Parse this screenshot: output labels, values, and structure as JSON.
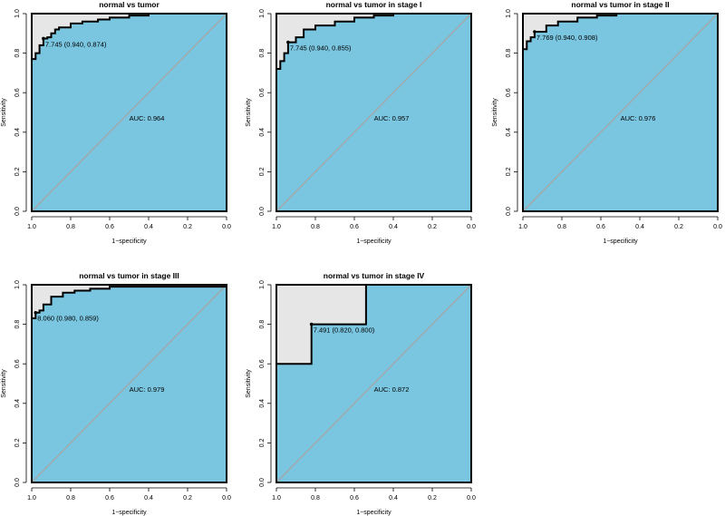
{
  "colors": {
    "auc_fill": "#7AC5E0",
    "outer_fill": "#E6E6E6",
    "diagonal": "#A6A6A6",
    "curve": "#000000",
    "frame": "#000000"
  },
  "chart_data": [
    {
      "type": "line",
      "title": "normal vs tumor",
      "xlabel": "1−specificity",
      "ylabel": "Sensitivity",
      "x_reversed": true,
      "xlim": [
        1.0,
        0.0
      ],
      "ylim": [
        0.0,
        1.0
      ],
      "x_ticks": [
        "1.0",
        "0.8",
        "0.6",
        "0.4",
        "0.2",
        "0.0"
      ],
      "y_ticks": [
        "0.0",
        "0.2",
        "0.4",
        "0.6",
        "0.8",
        "1.0"
      ],
      "auc_label": "AUC: 0.964",
      "threshold_label": "7.745 (0.940, 0.874)",
      "threshold_point": {
        "x": 0.94,
        "y": 0.874
      },
      "curve": [
        [
          1.0,
          0.0
        ],
        [
          1.0,
          0.77
        ],
        [
          0.98,
          0.77
        ],
        [
          0.98,
          0.8
        ],
        [
          0.96,
          0.8
        ],
        [
          0.96,
          0.84
        ],
        [
          0.94,
          0.84
        ],
        [
          0.94,
          0.874
        ],
        [
          0.92,
          0.874
        ],
        [
          0.92,
          0.88
        ],
        [
          0.9,
          0.88
        ],
        [
          0.9,
          0.9
        ],
        [
          0.88,
          0.9
        ],
        [
          0.88,
          0.92
        ],
        [
          0.86,
          0.92
        ],
        [
          0.86,
          0.93
        ],
        [
          0.8,
          0.93
        ],
        [
          0.8,
          0.95
        ],
        [
          0.74,
          0.95
        ],
        [
          0.74,
          0.96
        ],
        [
          0.66,
          0.96
        ],
        [
          0.66,
          0.97
        ],
        [
          0.6,
          0.97
        ],
        [
          0.6,
          0.98
        ],
        [
          0.5,
          0.98
        ],
        [
          0.5,
          0.99
        ],
        [
          0.4,
          0.99
        ],
        [
          0.4,
          1.0
        ],
        [
          0.0,
          1.0
        ]
      ]
    },
    {
      "type": "line",
      "title": "normal vs tumor in stage I",
      "xlabel": "1−specificity",
      "ylabel": "Sensitivity",
      "x_reversed": true,
      "xlim": [
        1.0,
        0.0
      ],
      "ylim": [
        0.0,
        1.0
      ],
      "x_ticks": [
        "1.0",
        "0.8",
        "0.6",
        "0.4",
        "0.2",
        "0.0"
      ],
      "y_ticks": [
        "0.0",
        "0.2",
        "0.4",
        "0.6",
        "0.8",
        "1.0"
      ],
      "auc_label": "AUC: 0.957",
      "threshold_label": "7.745 (0.940, 0.855)",
      "threshold_point": {
        "x": 0.94,
        "y": 0.855
      },
      "curve": [
        [
          1.0,
          0.0
        ],
        [
          1.0,
          0.72
        ],
        [
          0.98,
          0.72
        ],
        [
          0.98,
          0.76
        ],
        [
          0.96,
          0.76
        ],
        [
          0.96,
          0.8
        ],
        [
          0.94,
          0.8
        ],
        [
          0.94,
          0.855
        ],
        [
          0.9,
          0.855
        ],
        [
          0.9,
          0.88
        ],
        [
          0.86,
          0.88
        ],
        [
          0.86,
          0.92
        ],
        [
          0.8,
          0.92
        ],
        [
          0.8,
          0.94
        ],
        [
          0.7,
          0.94
        ],
        [
          0.7,
          0.96
        ],
        [
          0.6,
          0.96
        ],
        [
          0.6,
          0.98
        ],
        [
          0.5,
          0.98
        ],
        [
          0.5,
          0.99
        ],
        [
          0.4,
          0.99
        ],
        [
          0.4,
          1.0
        ],
        [
          0.0,
          1.0
        ]
      ]
    },
    {
      "type": "line",
      "title": "normal vs tumor in stage II",
      "xlabel": "1−specificity",
      "ylabel": "Sensitivity",
      "x_reversed": true,
      "xlim": [
        1.0,
        0.0
      ],
      "ylim": [
        0.0,
        1.0
      ],
      "x_ticks": [
        "1.0",
        "0.8",
        "0.6",
        "0.4",
        "0.2",
        "0.0"
      ],
      "y_ticks": [
        "0.0",
        "0.2",
        "0.4",
        "0.6",
        "0.8",
        "1.0"
      ],
      "auc_label": "AUC: 0.976",
      "threshold_label": "7.769 (0.940, 0.908)",
      "threshold_point": {
        "x": 0.94,
        "y": 0.908
      },
      "curve": [
        [
          1.0,
          0.0
        ],
        [
          1.0,
          0.82
        ],
        [
          0.98,
          0.82
        ],
        [
          0.98,
          0.86
        ],
        [
          0.96,
          0.86
        ],
        [
          0.96,
          0.88
        ],
        [
          0.94,
          0.88
        ],
        [
          0.94,
          0.908
        ],
        [
          0.88,
          0.908
        ],
        [
          0.88,
          0.94
        ],
        [
          0.82,
          0.94
        ],
        [
          0.82,
          0.96
        ],
        [
          0.72,
          0.96
        ],
        [
          0.72,
          0.98
        ],
        [
          0.62,
          0.98
        ],
        [
          0.62,
          0.99
        ],
        [
          0.52,
          0.99
        ],
        [
          0.52,
          1.0
        ],
        [
          0.0,
          1.0
        ]
      ]
    },
    {
      "type": "line",
      "title": "normal vs tumor in stage III",
      "xlabel": "1−specificity",
      "ylabel": "Sensitivity",
      "x_reversed": true,
      "xlim": [
        1.0,
        0.0
      ],
      "ylim": [
        0.0,
        1.0
      ],
      "x_ticks": [
        "1.0",
        "0.8",
        "0.6",
        "0.4",
        "0.2",
        "0.0"
      ],
      "y_ticks": [
        "0.0",
        "0.2",
        "0.4",
        "0.6",
        "0.8",
        "1.0"
      ],
      "auc_label": "AUC: 0.979",
      "threshold_label": "8.060 (0.980, 0.859)",
      "threshold_point": {
        "x": 0.98,
        "y": 0.859
      },
      "curve": [
        [
          1.0,
          0.0
        ],
        [
          1.0,
          0.83
        ],
        [
          0.98,
          0.83
        ],
        [
          0.98,
          0.859
        ],
        [
          0.96,
          0.859
        ],
        [
          0.96,
          0.87
        ],
        [
          0.94,
          0.87
        ],
        [
          0.94,
          0.9
        ],
        [
          0.9,
          0.9
        ],
        [
          0.9,
          0.94
        ],
        [
          0.84,
          0.94
        ],
        [
          0.84,
          0.96
        ],
        [
          0.78,
          0.96
        ],
        [
          0.78,
          0.97
        ],
        [
          0.7,
          0.97
        ],
        [
          0.7,
          0.98
        ],
        [
          0.6,
          0.98
        ],
        [
          0.6,
          0.99
        ],
        [
          0.0,
          0.99
        ]
      ]
    },
    {
      "type": "line",
      "title": "normal vs tumor in stage IV",
      "xlabel": "1−specificity",
      "ylabel": "Sensitivity",
      "x_reversed": true,
      "xlim": [
        1.0,
        0.0
      ],
      "ylim": [
        0.0,
        1.0
      ],
      "x_ticks": [
        "1.0",
        "0.8",
        "0.6",
        "0.4",
        "0.2",
        "0.0"
      ],
      "y_ticks": [
        "0.0",
        "0.2",
        "0.4",
        "0.6",
        "0.8",
        "1.0"
      ],
      "auc_label": "AUC: 0.872",
      "threshold_label": "7.491 (0.820, 0.800)",
      "threshold_point": {
        "x": 0.82,
        "y": 0.8
      },
      "curve": [
        [
          1.0,
          0.0
        ],
        [
          1.0,
          0.6
        ],
        [
          0.82,
          0.6
        ],
        [
          0.82,
          0.8
        ],
        [
          0.54,
          0.8
        ],
        [
          0.54,
          1.0
        ],
        [
          0.0,
          1.0
        ]
      ]
    }
  ]
}
